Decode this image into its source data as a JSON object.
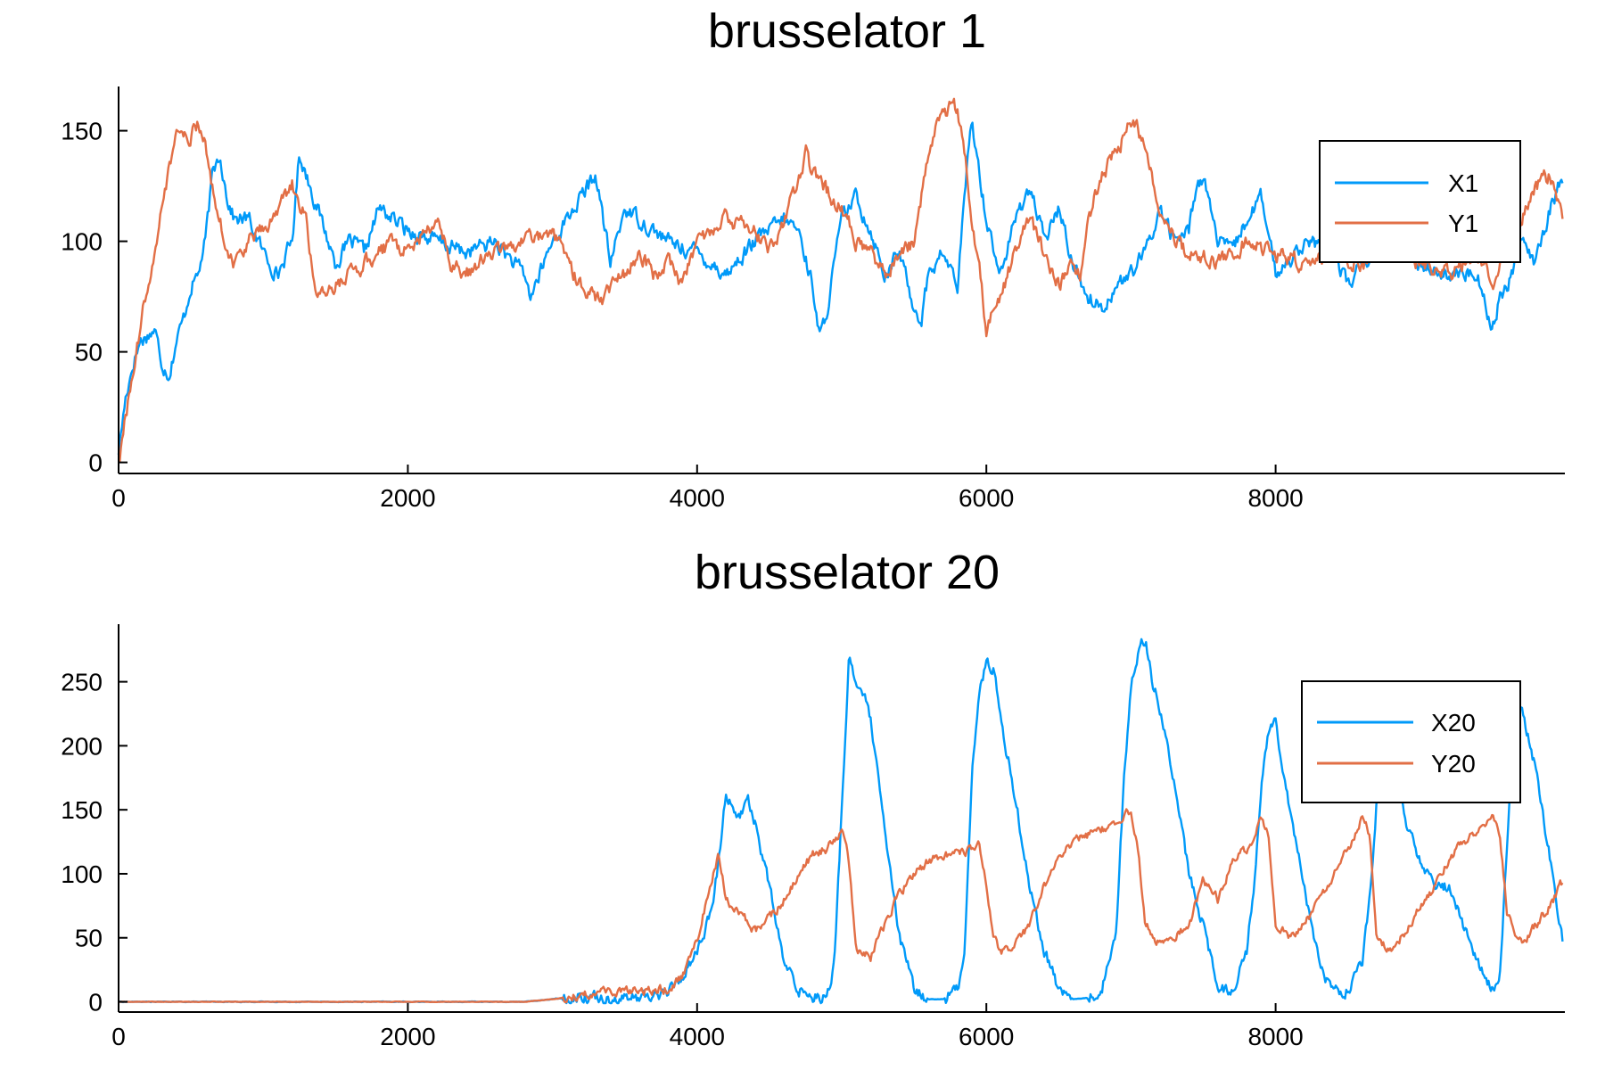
{
  "figure": {
    "colors": {
      "X": "#009af9",
      "Y": "#e26f46",
      "axis": "#000000",
      "legend_border": "#000000"
    }
  },
  "chart_data": [
    {
      "type": "line",
      "title": "brusselator 1",
      "xlabel": "",
      "ylabel": "",
      "xlim": [
        0,
        10000
      ],
      "ylim": [
        -5,
        170
      ],
      "x_ticks": [
        0,
        2000,
        4000,
        6000,
        8000
      ],
      "x_tick_labels": [
        "0",
        "2000",
        "4000",
        "6000",
        "8000"
      ],
      "y_ticks": [
        0,
        50,
        100,
        150
      ],
      "y_tick_labels": [
        "0",
        "50",
        "100",
        "150"
      ],
      "grid": false,
      "legend_position": "top-right",
      "noise": [
        6,
        6
      ],
      "series": [
        {
          "name": "X1",
          "color": "#009af9",
          "x": [
            0,
            50,
            100,
            150,
            250,
            300,
            350,
            400,
            450,
            500,
            550,
            600,
            650,
            700,
            750,
            800,
            900,
            1000,
            1100,
            1200,
            1250,
            1300,
            1400,
            1500,
            1600,
            1700,
            1800,
            2000,
            2200,
            2400,
            2600,
            2800,
            2850,
            3000,
            3200,
            3300,
            3400,
            3500,
            3600,
            3800,
            4000,
            4200,
            4400,
            4600,
            4700,
            4800,
            4850,
            4900,
            5000,
            5100,
            5200,
            5300,
            5400,
            5500,
            5550,
            5600,
            5700,
            5800,
            5850,
            5900,
            6000,
            6100,
            6200,
            6300,
            6400,
            6500,
            6600,
            6700,
            6800,
            6900,
            7000,
            7100,
            7200,
            7300,
            7400,
            7450,
            7500,
            7600,
            7700,
            7800,
            7900,
            8000,
            8200,
            8400,
            8500,
            8600,
            8800,
            9000,
            9200,
            9400,
            9500,
            9550,
            9600,
            9700,
            9800,
            9900,
            9990
          ],
          "y": [
            5,
            30,
            45,
            55,
            60,
            45,
            40,
            55,
            65,
            80,
            85,
            100,
            130,
            140,
            120,
            110,
            110,
            95,
            85,
            100,
            140,
            130,
            110,
            90,
            100,
            95,
            115,
            105,
            100,
            95,
            100,
            85,
            75,
            100,
            120,
            130,
            90,
            115,
            110,
            100,
            95,
            85,
            100,
            110,
            105,
            80,
            55,
            70,
            110,
            120,
            105,
            85,
            95,
            70,
            65,
            85,
            95,
            80,
            120,
            155,
            110,
            85,
            110,
            125,
            100,
            115,
            90,
            75,
            70,
            80,
            85,
            95,
            115,
            100,
            105,
            125,
            130,
            100,
            95,
            110,
            120,
            85,
            100,
            95,
            80,
            90,
            100,
            90,
            85,
            85,
            60,
            75,
            80,
            100,
            90,
            115,
            130
          ]
        },
        {
          "name": "Y1",
          "color": "#e26f46",
          "x": [
            0,
            100,
            200,
            300,
            400,
            450,
            500,
            550,
            600,
            650,
            700,
            750,
            800,
            900,
            1000,
            1100,
            1200,
            1300,
            1350,
            1400,
            1500,
            1600,
            1700,
            1800,
            1900,
            2000,
            2200,
            2300,
            2400,
            2600,
            2800,
            3000,
            3100,
            3200,
            3300,
            3350,
            3400,
            3500,
            3600,
            3700,
            3800,
            3900,
            4000,
            4200,
            4400,
            4500,
            4600,
            4700,
            4750,
            4800,
            5000,
            5100,
            5200,
            5300,
            5400,
            5500,
            5550,
            5600,
            5650,
            5700,
            5750,
            5800,
            5850,
            5900,
            5950,
            6000,
            6100,
            6200,
            6300,
            6400,
            6500,
            6600,
            6650,
            6700,
            6800,
            6900,
            7000,
            7050,
            7100,
            7200,
            7300,
            7400,
            7600,
            7800,
            8000,
            8200,
            8400,
            8600,
            8800,
            9000,
            9200,
            9400,
            9500,
            9600,
            9700,
            9800,
            9900,
            9990
          ],
          "y": [
            0,
            40,
            80,
            115,
            150,
            145,
            148,
            152,
            145,
            125,
            110,
            95,
            90,
            100,
            105,
            115,
            125,
            110,
            80,
            75,
            80,
            85,
            90,
            95,
            100,
            95,
            110,
            90,
            85,
            95,
            100,
            105,
            90,
            80,
            75,
            70,
            80,
            85,
            95,
            85,
            90,
            80,
            100,
            110,
            105,
            95,
            110,
            125,
            140,
            130,
            115,
            100,
            95,
            85,
            95,
            100,
            120,
            140,
            150,
            155,
            160,
            160,
            140,
            110,
            90,
            60,
            75,
            95,
            110,
            95,
            80,
            90,
            85,
            110,
            130,
            140,
            155,
            150,
            140,
            115,
            100,
            95,
            90,
            100,
            95,
            90,
            95,
            90,
            95,
            90,
            85,
            95,
            80,
            100,
            110,
            125,
            130,
            108
          ]
        }
      ]
    },
    {
      "type": "line",
      "title": "brusselator 20",
      "xlabel": "",
      "ylabel": "",
      "xlim": [
        0,
        10000
      ],
      "ylim": [
        -8,
        295
      ],
      "x_ticks": [
        0,
        2000,
        4000,
        6000,
        8000
      ],
      "x_tick_labels": [
        "0",
        "2000",
        "4000",
        "6000",
        "8000"
      ],
      "y_ticks": [
        0,
        50,
        100,
        150,
        200,
        250
      ],
      "y_tick_labels": [
        "0",
        "50",
        "100",
        "150",
        "200",
        "250"
      ],
      "grid": false,
      "legend_position": "top-right",
      "noise": [
        8,
        6
      ],
      "series": [
        {
          "name": "X20",
          "color": "#009af9",
          "x": [
            0,
            2800,
            3000,
            3200,
            3400,
            3600,
            3800,
            3900,
            4000,
            4100,
            4150,
            4200,
            4250,
            4300,
            4350,
            4400,
            4500,
            4600,
            4700,
            4800,
            4900,
            4950,
            5000,
            5050,
            5100,
            5150,
            5200,
            5300,
            5400,
            5500,
            5600,
            5700,
            5800,
            5850,
            5900,
            5950,
            6000,
            6050,
            6100,
            6200,
            6300,
            6400,
            6500,
            6600,
            6700,
            6800,
            6900,
            6950,
            7000,
            7050,
            7100,
            7150,
            7200,
            7300,
            7400,
            7500,
            7600,
            7700,
            7800,
            7850,
            7900,
            7950,
            8000,
            8100,
            8200,
            8300,
            8400,
            8500,
            8600,
            8650,
            8700,
            8800,
            8900,
            9000,
            9100,
            9200,
            9300,
            9400,
            9500,
            9550,
            9600,
            9650,
            9700,
            9800,
            9900,
            9990
          ],
          "y": [
            0,
            0,
            2,
            5,
            3,
            3,
            8,
            20,
            40,
            70,
            110,
            165,
            150,
            145,
            160,
            140,
            90,
            30,
            10,
            5,
            5,
            30,
            150,
            270,
            250,
            240,
            220,
            130,
            50,
            10,
            2,
            2,
            10,
            40,
            180,
            240,
            265,
            260,
            220,
            160,
            90,
            40,
            10,
            2,
            3,
            10,
            60,
            170,
            245,
            275,
            285,
            250,
            230,
            170,
            100,
            60,
            10,
            10,
            40,
            90,
            170,
            210,
            220,
            150,
            90,
            30,
            8,
            10,
            30,
            80,
            160,
            200,
            140,
            110,
            90,
            90,
            60,
            30,
            8,
            20,
            120,
            220,
            230,
            180,
            110,
            45
          ]
        },
        {
          "name": "Y20",
          "color": "#e26f46",
          "x": [
            0,
            2800,
            3000,
            3200,
            3400,
            3600,
            3800,
            3900,
            4000,
            4100,
            4150,
            4200,
            4250,
            4300,
            4400,
            4500,
            4600,
            4700,
            4800,
            4900,
            4950,
            5000,
            5050,
            5100,
            5200,
            5300,
            5400,
            5500,
            5600,
            5700,
            5800,
            5900,
            5950,
            6000,
            6050,
            6100,
            6200,
            6300,
            6400,
            6500,
            6600,
            6700,
            6800,
            6900,
            6950,
            7000,
            7050,
            7100,
            7200,
            7300,
            7400,
            7500,
            7550,
            7600,
            7700,
            7800,
            7850,
            7900,
            7950,
            8000,
            8100,
            8200,
            8300,
            8400,
            8500,
            8550,
            8600,
            8650,
            8700,
            8800,
            8900,
            9000,
            9100,
            9200,
            9300,
            9400,
            9450,
            9500,
            9550,
            9600,
            9700,
            9800,
            9900,
            9990
          ],
          "y": [
            0,
            0,
            2,
            5,
            8,
            8,
            10,
            20,
            50,
            95,
            115,
            80,
            75,
            70,
            55,
            65,
            80,
            100,
            115,
            120,
            125,
            135,
            110,
            40,
            35,
            60,
            85,
            100,
            110,
            115,
            115,
            120,
            128,
            90,
            50,
            40,
            45,
            60,
            90,
            115,
            125,
            130,
            135,
            140,
            148,
            150,
            120,
            60,
            45,
            50,
            60,
            95,
            90,
            80,
            110,
            120,
            130,
            140,
            135,
            60,
            50,
            60,
            80,
            100,
            120,
            130,
            145,
            130,
            50,
            40,
            55,
            75,
            90,
            110,
            125,
            135,
            140,
            145,
            130,
            70,
            45,
            60,
            75,
            95
          ]
        }
      ]
    }
  ]
}
